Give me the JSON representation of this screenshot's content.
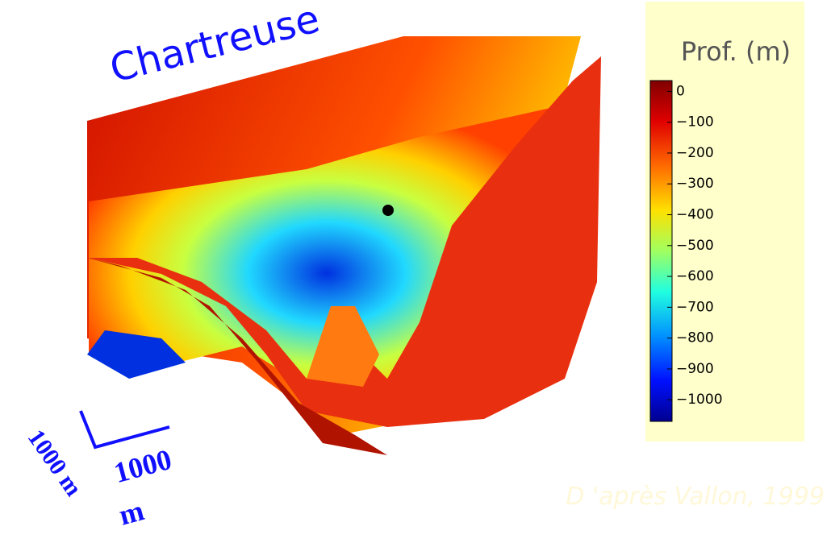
{
  "chart_data": {
    "type": "surface",
    "title": "Chartreuse",
    "colorbar": {
      "title": "Prof. (m)",
      "lim": [
        -1070,
        35
      ],
      "ticks": [
        0,
        {
          "value": -100,
          "label": "−100"
        },
        {
          "value": -200,
          "label": "−200"
        },
        {
          "value": -300,
          "label": "−300"
        },
        {
          "value": -400,
          "label": "−400"
        },
        {
          "value": -500,
          "label": "−500"
        },
        {
          "value": -600,
          "label": "−600"
        },
        {
          "value": -700,
          "label": "−700"
        },
        {
          "value": -800,
          "label": "−800"
        },
        {
          "value": -900,
          "label": "−900"
        },
        {
          "value": -1000,
          "label": "−1000"
        }
      ]
    },
    "scale_labels": [
      "1000 m",
      "1000",
      "m"
    ],
    "source": "D 'après Vallon, 1999"
  }
}
